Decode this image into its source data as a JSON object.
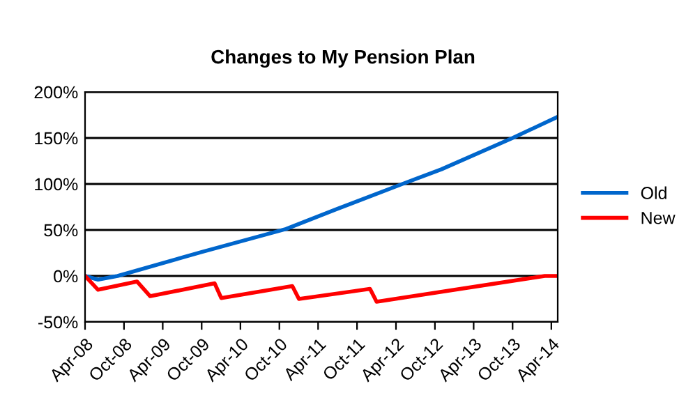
{
  "chart_data": {
    "type": "line",
    "title": "Changes to My Pension Plan",
    "series": [
      {
        "name": "Old",
        "color": "#0066cc",
        "x": [
          "2008-04",
          "2008-06",
          "2008-09",
          "2009-10",
          "2010-11",
          "2011-07",
          "2012-05",
          "2012-11",
          "2013-10",
          "2014-05"
        ],
        "values": [
          0,
          -4,
          0,
          26,
          51,
          73,
          100,
          116,
          150,
          173
        ]
      },
      {
        "name": "New",
        "color": "#ff0000",
        "x": [
          "2008-04",
          "2008-06",
          "2008-12",
          "2009-02",
          "2009-12",
          "2010-01",
          "2010-12",
          "2011-01",
          "2011-12",
          "2012-01",
          "2014-03",
          "2014-05"
        ],
        "values": [
          0,
          -15,
          -6,
          -22,
          -8,
          -24,
          -11,
          -25,
          -14,
          -28,
          0,
          0
        ]
      }
    ],
    "xlim": [
      "2008-04",
      "2014-05"
    ],
    "xticks": [
      {
        "value": "2008-04",
        "label": "Apr-08"
      },
      {
        "value": "2008-10",
        "label": "Oct-08"
      },
      {
        "value": "2009-04",
        "label": "Apr-09"
      },
      {
        "value": "2009-10",
        "label": "Oct-09"
      },
      {
        "value": "2010-04",
        "label": "Apr-10"
      },
      {
        "value": "2010-10",
        "label": "Oct-10"
      },
      {
        "value": "2011-04",
        "label": "Apr-11"
      },
      {
        "value": "2011-10",
        "label": "Oct-11"
      },
      {
        "value": "2012-04",
        "label": "Apr-12"
      },
      {
        "value": "2012-10",
        "label": "Oct-12"
      },
      {
        "value": "2013-04",
        "label": "Apr-13"
      },
      {
        "value": "2013-10",
        "label": "Oct-13"
      },
      {
        "value": "2014-04",
        "label": "Apr-14"
      }
    ],
    "ylim": [
      -50,
      200
    ],
    "yticks": [
      {
        "value": -50,
        "label": "-50%"
      },
      {
        "value": 0,
        "label": "0%"
      },
      {
        "value": 50,
        "label": "50%"
      },
      {
        "value": 100,
        "label": "100%"
      },
      {
        "value": 150,
        "label": "150%"
      },
      {
        "value": 200,
        "label": "200%"
      }
    ],
    "grid": "y",
    "legend": "right",
    "marker": "none",
    "line_style": "solid"
  }
}
